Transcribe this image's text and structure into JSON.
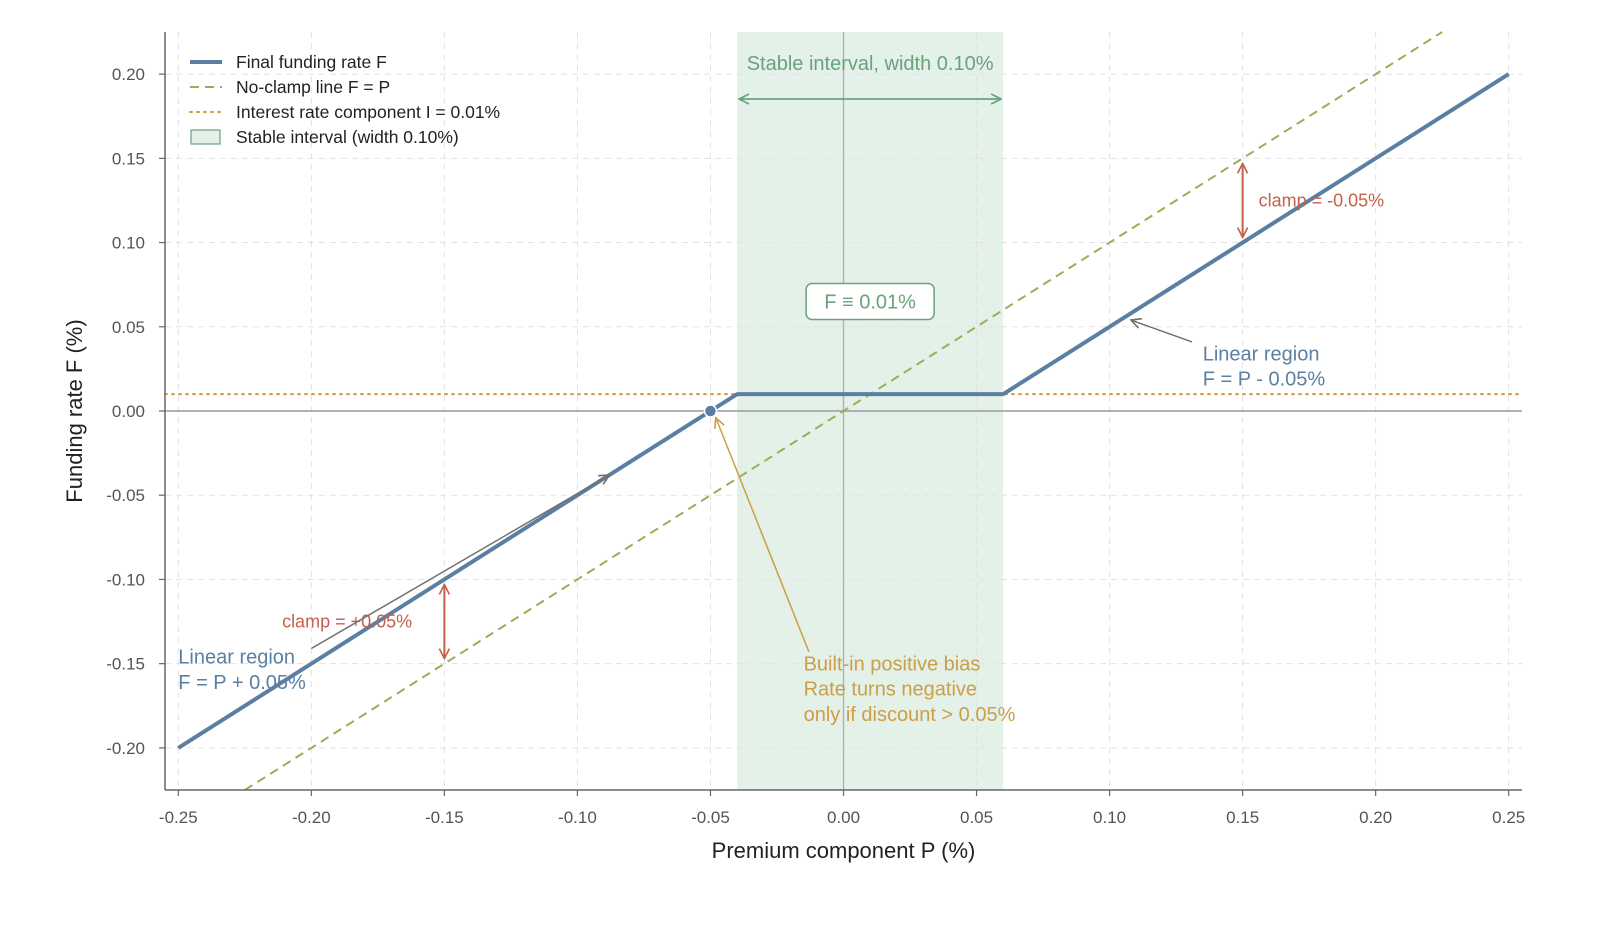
{
  "chart_data": {
    "type": "line",
    "xlabel": "Premium component P (%)",
    "ylabel": "Funding rate F (%)",
    "xlim": [
      -0.255,
      0.255
    ],
    "ylim": [
      -0.225,
      0.225
    ],
    "xticks": [
      -0.25,
      -0.2,
      -0.15,
      -0.1,
      -0.05,
      0.0,
      0.05,
      0.1,
      0.15,
      0.2,
      0.25
    ],
    "xtick_labels": [
      "-0.25",
      "-0.20",
      "-0.15",
      "-0.10",
      "-0.05",
      "0.00",
      "0.05",
      "0.10",
      "0.15",
      "0.20",
      "0.25"
    ],
    "yticks": [
      -0.2,
      -0.15,
      -0.1,
      -0.05,
      0.0,
      0.05,
      0.1,
      0.15,
      0.2
    ],
    "ytick_labels": [
      "-0.20",
      "-0.15",
      "-0.10",
      "-0.05",
      "0.00",
      "0.05",
      "0.10",
      "0.15",
      "0.20"
    ],
    "grid": true,
    "legend_position": "top-left",
    "series": [
      {
        "name": "Final funding rate F",
        "style": "solid",
        "color": "#5b7fa3",
        "x": [
          -0.25,
          -0.04,
          0.06,
          0.25
        ],
        "y": [
          -0.2,
          0.01,
          0.01,
          0.2
        ]
      },
      {
        "name": "No-clamp line F = P",
        "style": "dashed",
        "color": "#9aaf55",
        "x": [
          -0.225,
          0.225
        ],
        "y": [
          -0.225,
          0.225
        ]
      },
      {
        "name": "Interest rate component I = 0.01%",
        "style": "dotted",
        "color": "#d09b45",
        "y_const": 0.01
      }
    ],
    "band": {
      "name": "Stable interval (width 0.10%)",
      "x_from": -0.04,
      "x_to": 0.06,
      "color": "#e3f1e8",
      "edge_color": "#6aa27e"
    },
    "marker": {
      "x": -0.05,
      "y": 0.0,
      "color": "#5b7fa3"
    },
    "annotations": {
      "stable_title": "Stable interval, width 0.10%",
      "f_box": "F ≡ 0.01%",
      "clamp_right": "clamp = -0.05%",
      "clamp_left": "clamp = +0.05%",
      "linear_right_line1": "Linear region",
      "linear_right_line2": "F = P - 0.05%",
      "linear_left_line1": "Linear region",
      "linear_left_line2": "F = P + 0.05%",
      "bias_line1": "Built-in positive bias",
      "bias_line2": "Rate turns negative",
      "bias_line3": "only if discount > 0.05%"
    },
    "colors": {
      "blue": "#5b7fa3",
      "green_text": "#6aa27e",
      "red": "#c4614a",
      "gold": "#cc9e48",
      "gray": "#707070"
    }
  }
}
